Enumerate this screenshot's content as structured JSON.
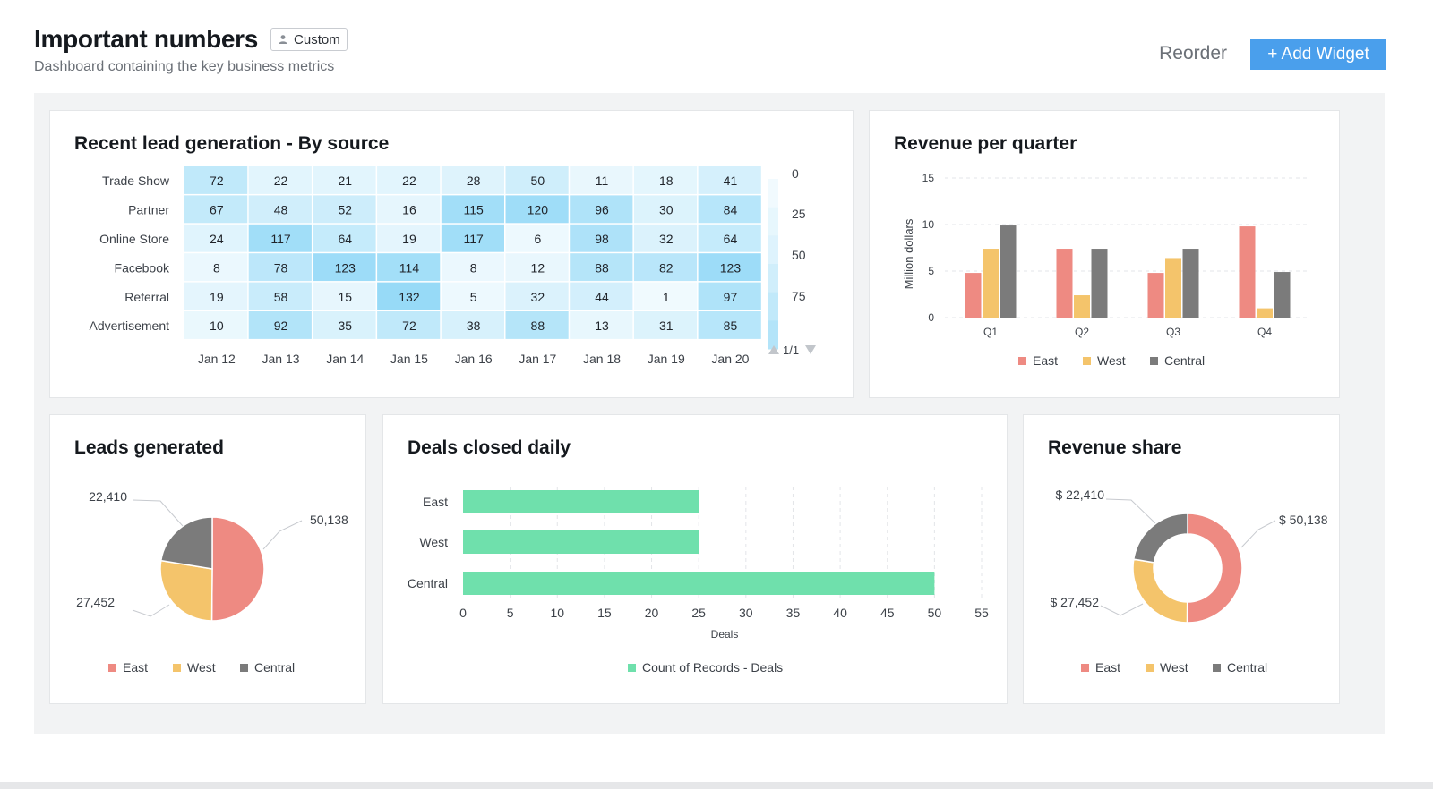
{
  "header": {
    "title": "Important numbers",
    "badge": "Custom",
    "subtitle": "Dashboard containing the key business metrics",
    "reorder_label": "Reorder",
    "add_widget_label": "+ Add Widget"
  },
  "colors": {
    "east": "#ee8a82",
    "west": "#f4c46b",
    "central": "#7b7b7b",
    "deals_bar": "#6fe0ac",
    "accent": "#4a9fec"
  },
  "chart_data": [
    {
      "id": "heatmap",
      "type": "heatmap",
      "title": "Recent lead generation - By source",
      "rows": [
        "Trade Show",
        "Partner",
        "Online Store",
        "Facebook",
        "Referral",
        "Advertisement"
      ],
      "columns": [
        "Jan 12",
        "Jan 13",
        "Jan 14",
        "Jan 15",
        "Jan 16",
        "Jan 17",
        "Jan 18",
        "Jan 19",
        "Jan 20"
      ],
      "values": [
        [
          72,
          22,
          21,
          22,
          28,
          50,
          11,
          18,
          41
        ],
        [
          67,
          48,
          52,
          16,
          115,
          120,
          96,
          30,
          84
        ],
        [
          24,
          117,
          64,
          19,
          117,
          6,
          98,
          32,
          64
        ],
        [
          8,
          78,
          123,
          114,
          8,
          12,
          88,
          82,
          123
        ],
        [
          19,
          58,
          15,
          132,
          5,
          32,
          44,
          1,
          97
        ],
        [
          10,
          92,
          35,
          72,
          38,
          88,
          13,
          31,
          85
        ]
      ],
      "legend_ticks": [
        "0",
        "25",
        "50",
        "75"
      ],
      "legend_page": "1/1"
    },
    {
      "id": "revenue-quarter",
      "type": "bar",
      "title": "Revenue per quarter",
      "ylabel": "Million dollars",
      "ylim": [
        0,
        15
      ],
      "yticks": [
        0,
        5,
        10,
        15
      ],
      "categories": [
        "Q1",
        "Q2",
        "Q3",
        "Q4"
      ],
      "series": [
        {
          "name": "East",
          "values": [
            4.8,
            7.4,
            4.8,
            9.8
          ]
        },
        {
          "name": "West",
          "values": [
            7.4,
            2.4,
            6.4,
            1.0
          ]
        },
        {
          "name": "Central",
          "values": [
            9.9,
            7.4,
            7.4,
            4.9
          ]
        }
      ]
    },
    {
      "id": "leads-pie",
      "type": "pie",
      "title": "Leads generated",
      "labels": [
        "East",
        "West",
        "Central"
      ],
      "values": [
        50138,
        27452,
        22410
      ],
      "value_labels": [
        "50,138",
        "27,452",
        "22,410"
      ]
    },
    {
      "id": "deals-daily",
      "type": "bar",
      "orientation": "horizontal",
      "title": "Deals closed daily",
      "categories": [
        "East",
        "West",
        "Central"
      ],
      "values": [
        25,
        25,
        50
      ],
      "xlim": [
        0,
        55
      ],
      "xticks": [
        0,
        5,
        10,
        15,
        20,
        25,
        30,
        35,
        40,
        45,
        50,
        55
      ],
      "xlabel": "Deals",
      "legend": "Count of Records - Deals"
    },
    {
      "id": "revenue-share",
      "type": "pie",
      "donut": true,
      "title": "Revenue share",
      "labels": [
        "East",
        "West",
        "Central"
      ],
      "values": [
        50138,
        27452,
        22410
      ],
      "value_labels": [
        "$ 50,138",
        "$ 27,452",
        "$ 22,410"
      ]
    }
  ]
}
